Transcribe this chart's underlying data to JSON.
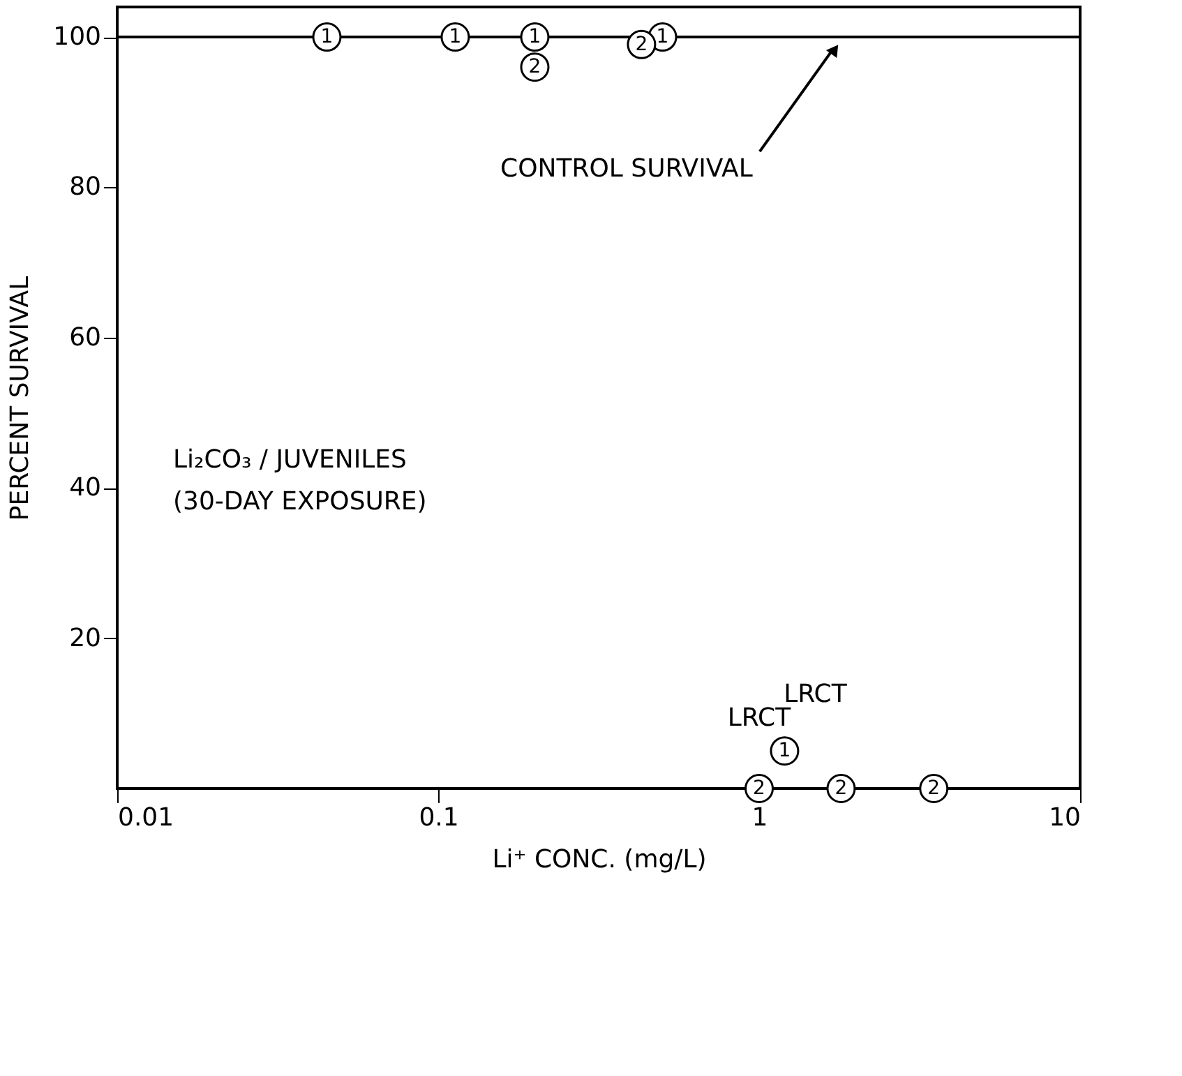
{
  "chart_data": {
    "type": "scatter",
    "xlabel": "Li⁺ CONC. (mg/L)",
    "ylabel": "PERCENT SURVIVAL",
    "log": "x",
    "xlim": [
      0.01,
      10
    ],
    "xticks": [
      0.01,
      0.1,
      1,
      10
    ],
    "ylim": [
      0,
      104
    ],
    "yticks": [
      20,
      40,
      60,
      80,
      100
    ],
    "grid": false,
    "marker": "circle",
    "series": [
      {
        "name": "1",
        "color": "#000000",
        "x": [
          0.045,
          0.113,
          0.2,
          0.5,
          1.2
        ],
        "values": [
          100,
          100,
          100,
          100,
          5
        ]
      },
      {
        "name": "2",
        "color": "#000000",
        "x": [
          0.2,
          0.43,
          1.0,
          1.8,
          3.5
        ],
        "values": [
          96,
          99,
          0,
          0,
          0
        ]
      }
    ],
    "ref_lines": [
      {
        "axis": "y",
        "value": 100,
        "label": "CONTROL SURVIVAL",
        "color": "#000000"
      }
    ],
    "annotations": [
      "Li₂CO₃ / JUVENILES",
      "(30-DAY EXPOSURE)",
      {
        "text": "LRCT",
        "x": 1.0,
        "y": 0
      },
      {
        "text": "LRCT",
        "x": 1.2,
        "y": 5
      }
    ]
  }
}
